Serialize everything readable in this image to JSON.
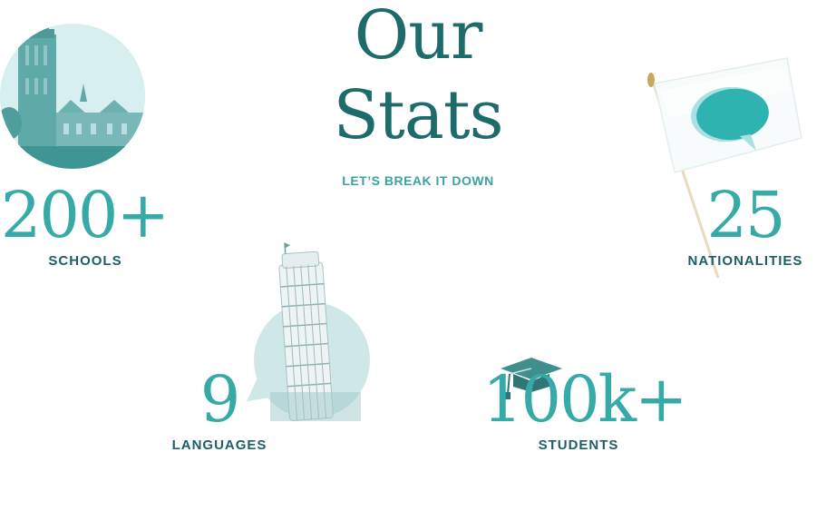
{
  "header": {
    "title_line1": "Our",
    "title_line2": "Stats",
    "subtitle": "LET’S BREAK IT DOWN"
  },
  "stats": {
    "schools": {
      "value": "200+",
      "label": "SCHOOLS"
    },
    "nationalities": {
      "value": "25",
      "label": "NATIONALITIES"
    },
    "languages": {
      "value": "9",
      "label": "LANGUAGES"
    },
    "students": {
      "value": "100k+",
      "label": "STUDENTS"
    }
  },
  "icons": {
    "schools": "university-tower-image",
    "nationalities": "flag-speech-bubble-image",
    "languages": "leaning-tower-image",
    "students": "graduation-cap-icon"
  },
  "colors": {
    "title": "#1e6b6b",
    "accent": "#35aaa7",
    "label": "#1e5f66",
    "subtitle": "#3aa3a0"
  }
}
